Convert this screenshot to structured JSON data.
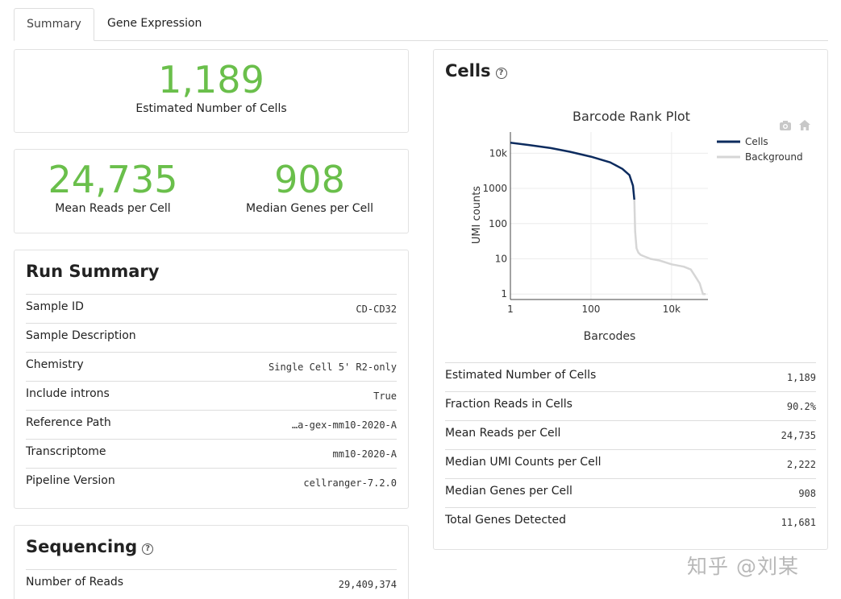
{
  "tabs": [
    "Summary",
    "Gene Expression"
  ],
  "headline": {
    "cells_value": "1,189",
    "cells_label": "Estimated Number of Cells",
    "reads_value": "24,735",
    "reads_label": "Mean Reads per Cell",
    "genes_value": "908",
    "genes_label": "Median Genes per Cell"
  },
  "run_summary": {
    "title": "Run Summary",
    "rows": [
      {
        "k": "Sample ID",
        "v": "CD-CD32"
      },
      {
        "k": "Sample Description",
        "v": ""
      },
      {
        "k": "Chemistry",
        "v": "Single Cell 5' R2-only"
      },
      {
        "k": "Include introns",
        "v": "True"
      },
      {
        "k": "Reference Path",
        "v": "…a-gex-mm10-2020-A"
      },
      {
        "k": "Transcriptome",
        "v": "mm10-2020-A"
      },
      {
        "k": "Pipeline Version",
        "v": "cellranger-7.2.0"
      }
    ]
  },
  "sequencing": {
    "title": "Sequencing",
    "help": "?",
    "rows": [
      {
        "k": "Number of Reads",
        "v": "29,409,374"
      }
    ]
  },
  "cells": {
    "title": "Cells",
    "help": "?",
    "rows": [
      {
        "k": "Estimated Number of Cells",
        "v": "1,189"
      },
      {
        "k": "Fraction Reads in Cells",
        "v": "90.2%"
      },
      {
        "k": "Mean Reads per Cell",
        "v": "24,735"
      },
      {
        "k": "Median UMI Counts per Cell",
        "v": "2,222"
      },
      {
        "k": "Median Genes per Cell",
        "v": "908"
      },
      {
        "k": "Total Genes Detected",
        "v": "11,681"
      }
    ]
  },
  "chart_data": {
    "type": "line",
    "title": "Barcode Rank Plot",
    "xlabel": "Barcodes",
    "ylabel": "UMI counts",
    "xscale": "log",
    "yscale": "log",
    "xlim": [
      1,
      80000
    ],
    "ylim": [
      0.7,
      40000
    ],
    "x_ticks": [
      "1",
      "100",
      "10k"
    ],
    "y_ticks": [
      "1",
      "10",
      "100",
      "1000",
      "10k"
    ],
    "legend_position": "top-right",
    "colors": {
      "cells": "#0c2b5e",
      "background": "#d6d6d6"
    },
    "series": [
      {
        "name": "Cells",
        "x": [
          1,
          3,
          10,
          30,
          100,
          300,
          600,
          900,
          1100,
          1189
        ],
        "y": [
          20000,
          17000,
          14000,
          11000,
          8000,
          5500,
          3600,
          2400,
          1200,
          480
        ]
      },
      {
        "name": "Background",
        "x": [
          1189,
          1250,
          1350,
          1500,
          1700,
          2000,
          3000,
          5000,
          10000,
          20000,
          30000,
          40000,
          50000,
          60000,
          70000
        ],
        "y": [
          480,
          60,
          20,
          15,
          13,
          12,
          10,
          9,
          7,
          6,
          5,
          3,
          2,
          1,
          1
        ]
      }
    ]
  },
  "watermark": "知乎 @刘某"
}
